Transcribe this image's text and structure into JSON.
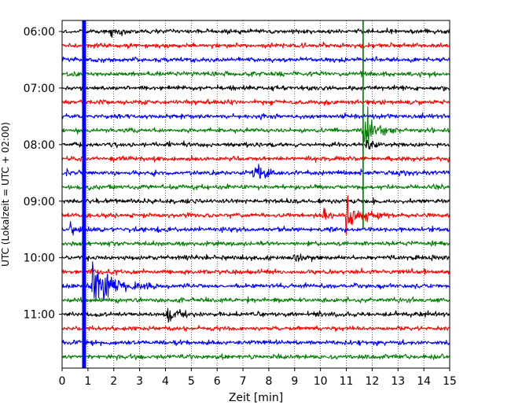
{
  "chart_data": {
    "type": "line",
    "subtype": "helicorder",
    "title": "",
    "xlabel": "Zeit  [min]",
    "ylabel": "UTC (Lokalzeit = UTC + 02:00)",
    "xlim": [
      0,
      15
    ],
    "x_ticks": [
      "0",
      "1",
      "2",
      "3",
      "4",
      "5",
      "6",
      "7",
      "8",
      "9",
      "10",
      "11",
      "12",
      "13",
      "14",
      "15"
    ],
    "y_tick_labels": [
      "06:00",
      "07:00",
      "08:00",
      "09:00",
      "10:00",
      "11:00"
    ],
    "grid": "vertical dotted",
    "trace_interval_minutes": 15,
    "row_start_times": [
      "06:00",
      "06:15",
      "06:30",
      "06:45",
      "07:00",
      "07:15",
      "07:30",
      "07:45",
      "08:00",
      "08:15",
      "08:30",
      "08:45",
      "09:00",
      "09:15",
      "09:30",
      "09:45",
      "10:00",
      "10:15",
      "10:30",
      "10:45",
      "11:00",
      "11:15",
      "11:30",
      "11:45"
    ],
    "color_cycle": [
      "#000000",
      "#ff0000",
      "#0000ff",
      "#008000"
    ],
    "events": [
      {
        "row_start": "06:00",
        "x_min": 1.9,
        "amplitude": 0.5,
        "width_min": 0.6
      },
      {
        "row_start": "07:45",
        "x_min": 11.7,
        "amplitude": 1.6,
        "width_min": 0.8
      },
      {
        "row_start": "08:00",
        "x_min": 11.8,
        "amplitude": 0.45,
        "width_min": 0.5
      },
      {
        "row_start": "08:30",
        "x_min": 7.4,
        "amplitude": 0.7,
        "width_min": 0.8
      },
      {
        "row_start": "08:30",
        "x_min": 0.2,
        "amplitude": 0.6,
        "width_min": 0.4
      },
      {
        "row_start": "09:15",
        "x_min": 11.0,
        "amplitude": 1.4,
        "width_min": 1.0
      },
      {
        "row_start": "09:15",
        "x_min": 10.1,
        "amplitude": 0.8,
        "width_min": 0.3
      },
      {
        "row_start": "09:30",
        "x_min": 0.3,
        "amplitude": 0.6,
        "width_min": 0.5
      },
      {
        "row_start": "10:00",
        "x_min": 9.0,
        "amplitude": 0.35,
        "width_min": 0.5
      },
      {
        "row_start": "10:30",
        "x_min": 1.2,
        "amplitude": 1.7,
        "width_min": 1.5
      },
      {
        "row_start": "11:00",
        "x_min": 4.1,
        "amplitude": 0.5,
        "width_min": 1.0
      }
    ],
    "spikes": [
      {
        "x_min": 0.85,
        "rows": "all",
        "color": "#0000ff",
        "width_min": 0.15
      },
      {
        "x_min": 11.65,
        "rows_from": "06:00",
        "rows_to": "09:30",
        "color": "#008000",
        "width_min": 0.05
      }
    ]
  }
}
